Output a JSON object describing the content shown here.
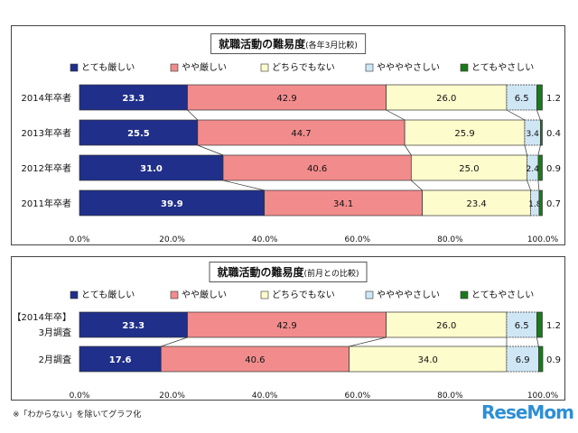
{
  "chart_data": [
    {
      "type": "bar",
      "orientation": "horizontal",
      "stacked": true,
      "title": "就職活動の難易度",
      "subtitle": "(各年3月比較)",
      "categories": [
        "2014年卒者",
        "2013年卒者",
        "2012年卒者",
        "2011年卒者"
      ],
      "series": [
        {
          "name": "とても厳しい",
          "values": [
            23.3,
            25.5,
            31.0,
            39.9
          ],
          "labels": [
            "23.3",
            "25.5",
            "31.0",
            "39.9"
          ]
        },
        {
          "name": "やや厳しい",
          "values": [
            42.9,
            44.7,
            40.6,
            34.1
          ],
          "labels": [
            "42.9",
            "44.7",
            "40.6",
            "34.1"
          ]
        },
        {
          "name": "どちらでもない",
          "values": [
            26.0,
            25.9,
            25.0,
            23.4
          ],
          "labels": [
            "26.0",
            "25.9",
            "25.0",
            "23.4"
          ]
        },
        {
          "name": "ややややさしい",
          "values": [
            6.5,
            3.4,
            2.4,
            1.8
          ],
          "labels": [
            "6.5",
            "3.4",
            "2.4",
            "1.8"
          ]
        },
        {
          "name": "とてもやさしい",
          "values": [
            1.2,
            0.4,
            0.9,
            0.7
          ],
          "labels": [
            "1.2",
            "0.4",
            "0.9",
            "0.7"
          ]
        }
      ],
      "xticks": [
        "0.0%",
        "20.0%",
        "40.0%",
        "60.0%",
        "80.0%",
        "100.0%"
      ],
      "xlim": [
        0,
        100
      ],
      "grid": false,
      "legend": "top"
    },
    {
      "type": "bar",
      "orientation": "horizontal",
      "stacked": true,
      "title": "就職活動の難易度",
      "subtitle": "(前月との比較)",
      "group_label": "【2014年卒】",
      "categories": [
        "3月調査",
        "2月調査"
      ],
      "series": [
        {
          "name": "とても厳しい",
          "values": [
            23.3,
            17.6
          ],
          "labels": [
            "23.3",
            "17.6"
          ]
        },
        {
          "name": "やや厳しい",
          "values": [
            42.9,
            40.6
          ],
          "labels": [
            "42.9",
            "40.6"
          ]
        },
        {
          "name": "どちらでもない",
          "values": [
            26.0,
            34.0
          ],
          "labels": [
            "26.0",
            "34.0"
          ]
        },
        {
          "name": "ややややさしい",
          "values": [
            6.5,
            6.9
          ],
          "labels": [
            "6.5",
            "6.9"
          ]
        },
        {
          "name": "とてもやさしい",
          "values": [
            1.2,
            0.9
          ],
          "labels": [
            "1.2",
            "0.9"
          ]
        }
      ],
      "xticks": [
        "0.0%",
        "20.0%",
        "40.0%",
        "60.0%",
        "80.0%",
        "100.0%"
      ],
      "xlim": [
        0,
        100
      ],
      "grid": false,
      "legend": "top"
    }
  ],
  "series_colors": [
    "#1f2f8a",
    "#f28c8c",
    "#fdfccc",
    "#cfe6f5",
    "#1a7a1a"
  ],
  "series_patterns": [
    "solid",
    "solid",
    "solid",
    "dashed",
    "solid"
  ],
  "footnote": "※「わからない」を除いてグラフ化",
  "logo": "ReseMom"
}
